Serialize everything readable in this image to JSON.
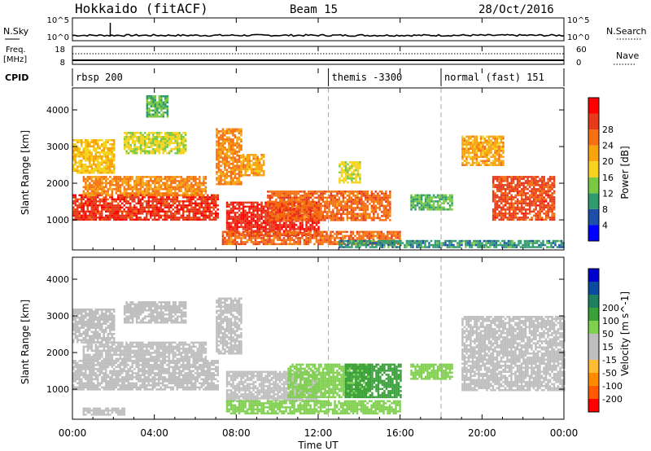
{
  "header": {
    "station": "Hokkaido (fitACF)",
    "beam": "Beam 15",
    "date": "28/Oct/2016"
  },
  "side_labels": {
    "nsky": "N.Sky",
    "nsearch": "N.Search",
    "freq": "Freq.",
    "freq_unit": "[MHz]",
    "nave": "Nave",
    "cpid": "CPID"
  },
  "noise_panel": {
    "left_ticks": [
      "10^5",
      "10^0"
    ],
    "right_ticks": [
      "10^5",
      "10^0"
    ]
  },
  "freq_panel": {
    "left_ticks": [
      "18",
      "8"
    ],
    "right_ticks": [
      "60",
      "0"
    ]
  },
  "cpid_panel": {
    "segments": [
      {
        "label": "rbsp 200",
        "start_hour": 0
      },
      {
        "label": "themis -3300",
        "start_hour": 12.5
      },
      {
        "label": "normal (fast) 151",
        "start_hour": 18
      }
    ]
  },
  "x_axis": {
    "label": "Time UT",
    "tick_labels": [
      "00:00",
      "04:00",
      "08:00",
      "12:00",
      "16:00",
      "20:00",
      "00:00"
    ],
    "range_hours": [
      0,
      24
    ]
  },
  "colors": {
    "power_scale": [
      "#0000ff",
      "#1e4fa8",
      "#2e9a6e",
      "#7ac943",
      "#f5d31e",
      "#f7a40e",
      "#f57010",
      "#e53b1a",
      "#ff0000"
    ],
    "velocity_scale": [
      "#ff0000",
      "#ff5a00",
      "#ff8c00",
      "#ffbb33",
      "#bebebe",
      "#bebebe",
      "#80d050",
      "#3aa03a",
      "#1e8060",
      "#0a4aa0",
      "#0000cc"
    ]
  },
  "chart_data": [
    {
      "type": "heatmap",
      "name": "power",
      "ylabel": "Slant Range [km]",
      "ylim": [
        180,
        4600
      ],
      "y_ticks": [
        1000,
        2000,
        3000,
        4000
      ],
      "xlim": [
        0,
        24
      ],
      "colorbar": {
        "label": "Power [dB]",
        "ticks": [
          4,
          8,
          12,
          16,
          20,
          24,
          28
        ]
      },
      "patches": [
        {
          "x": [
            0.0,
            7.1
          ],
          "y": [
            1000,
            1700
          ],
          "value": 27
        },
        {
          "x": [
            0.5,
            6.5
          ],
          "y": [
            1700,
            2200
          ],
          "value": 22
        },
        {
          "x": [
            0.0,
            2.0
          ],
          "y": [
            2300,
            3200
          ],
          "value": 18
        },
        {
          "x": [
            2.5,
            5.5
          ],
          "y": [
            2800,
            3400
          ],
          "value": 16
        },
        {
          "x": [
            3.6,
            4.6
          ],
          "y": [
            3800,
            4400
          ],
          "value": 12
        },
        {
          "x": [
            7.0,
            8.2
          ],
          "y": [
            2000,
            3500
          ],
          "value": 22
        },
        {
          "x": [
            8.3,
            9.3
          ],
          "y": [
            2200,
            2800
          ],
          "value": 20
        },
        {
          "x": [
            7.5,
            12.0
          ],
          "y": [
            600,
            1500
          ],
          "value": 28
        },
        {
          "x": [
            9.5,
            15.5
          ],
          "y": [
            1000,
            1800
          ],
          "value": 24
        },
        {
          "x": [
            7.3,
            16.0
          ],
          "y": [
            350,
            700
          ],
          "value": 24
        },
        {
          "x": [
            13.0,
            14.0
          ],
          "y": [
            2000,
            2600
          ],
          "value": 16
        },
        {
          "x": [
            16.5,
            18.5
          ],
          "y": [
            1300,
            1700
          ],
          "value": 12
        },
        {
          "x": [
            19.0,
            21.0
          ],
          "y": [
            2500,
            3300
          ],
          "value": 20
        },
        {
          "x": [
            20.5,
            23.5
          ],
          "y": [
            1000,
            2200
          ],
          "value": 26
        },
        {
          "x": [
            13.0,
            24.0
          ],
          "y": [
            250,
            450
          ],
          "value": 10
        }
      ]
    },
    {
      "type": "heatmap",
      "name": "velocity",
      "ylabel": "Slant Range [km]",
      "ylim": [
        180,
        4600
      ],
      "y_ticks": [
        1000,
        2000,
        3000,
        4000
      ],
      "xlim": [
        0,
        24
      ],
      "colorbar": {
        "label": "Velocity [m s^-1]",
        "ticks": [
          -200,
          -100,
          -50,
          -15,
          15,
          50,
          100,
          200
        ]
      },
      "patches": [
        {
          "x": [
            0.0,
            7.1
          ],
          "y": [
            1000,
            1800
          ],
          "value": 0
        },
        {
          "x": [
            0.5,
            6.5
          ],
          "y": [
            1800,
            2300
          ],
          "value": 0
        },
        {
          "x": [
            0.0,
            2.0
          ],
          "y": [
            2300,
            3200
          ],
          "value": 0
        },
        {
          "x": [
            2.5,
            5.5
          ],
          "y": [
            2800,
            3400
          ],
          "value": -30
        },
        {
          "x": [
            7.0,
            8.2
          ],
          "y": [
            2000,
            3500
          ],
          "value": 0
        },
        {
          "x": [
            7.5,
            12.0
          ],
          "y": [
            700,
            1500
          ],
          "value": 0
        },
        {
          "x": [
            10.5,
            14.5
          ],
          "y": [
            800,
            1700
          ],
          "value": 40
        },
        {
          "x": [
            13.3,
            16.0
          ],
          "y": [
            800,
            1700
          ],
          "value": 70
        },
        {
          "x": [
            7.5,
            16.0
          ],
          "y": [
            350,
            700
          ],
          "value": 40
        },
        {
          "x": [
            16.5,
            18.5
          ],
          "y": [
            1300,
            1700
          ],
          "value": 30
        },
        {
          "x": [
            19.0,
            24.0
          ],
          "y": [
            1000,
            3000
          ],
          "value": 0
        },
        {
          "x": [
            0.5,
            2.5
          ],
          "y": [
            300,
            500
          ],
          "value": -40
        }
      ]
    }
  ]
}
